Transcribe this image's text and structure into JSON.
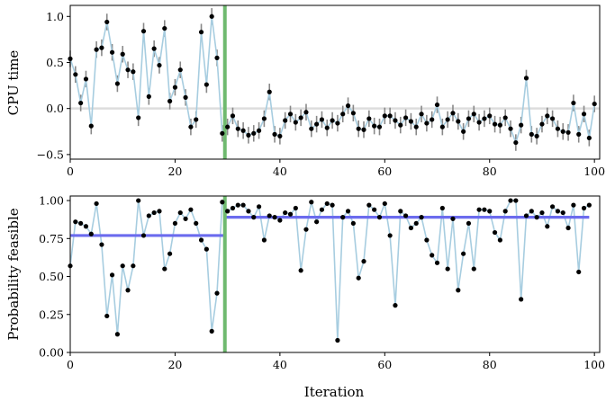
{
  "chart_data": [
    {
      "type": "line",
      "ylabel": "CPU time",
      "xlabel": "",
      "xlim": [
        0,
        101
      ],
      "ylim": [
        -0.55,
        1.12
      ],
      "xticks": [
        "0",
        "20",
        "40",
        "60",
        "80",
        "100"
      ],
      "yticks": [
        "−0.5",
        "0.0",
        "0.5",
        "1.0"
      ],
      "xtick_values": [
        0,
        20,
        40,
        60,
        80,
        100
      ],
      "ytick_values": [
        -0.5,
        0,
        0.5,
        1.0
      ],
      "reference_line_y": 0,
      "switch_x": 29.5,
      "line_color": "#a7cde0",
      "switch_color": "#6fba6f",
      "reference_color": "#dddddd",
      "errorbar_color": "#888888",
      "x": [
        0,
        1,
        2,
        3,
        4,
        5,
        6,
        7,
        8,
        9,
        10,
        11,
        12,
        13,
        14,
        15,
        16,
        17,
        18,
        19,
        20,
        21,
        22,
        23,
        24,
        25,
        26,
        27,
        28,
        29,
        30,
        31,
        32,
        33,
        34,
        35,
        36,
        37,
        38,
        39,
        40,
        41,
        42,
        43,
        44,
        45,
        46,
        47,
        48,
        49,
        50,
        51,
        52,
        53,
        54,
        55,
        56,
        57,
        58,
        59,
        60,
        61,
        62,
        63,
        64,
        65,
        66,
        67,
        68,
        69,
        70,
        71,
        72,
        73,
        74,
        75,
        76,
        77,
        78,
        79,
        80,
        81,
        82,
        83,
        84,
        85,
        86,
        87,
        88,
        89,
        90,
        91,
        92,
        93,
        94,
        95,
        96,
        97,
        98,
        99,
        100
      ],
      "y": [
        0.54,
        0.37,
        0.06,
        0.32,
        -0.19,
        0.64,
        0.66,
        0.94,
        0.61,
        0.27,
        0.59,
        0.42,
        0.4,
        -0.1,
        0.84,
        0.13,
        0.65,
        0.47,
        0.87,
        0.08,
        0.23,
        0.42,
        0.12,
        -0.2,
        -0.12,
        0.83,
        0.26,
        1.0,
        0.55,
        -0.27,
        -0.2,
        -0.08,
        -0.22,
        -0.24,
        -0.29,
        -0.27,
        -0.24,
        -0.11,
        0.18,
        -0.28,
        -0.3,
        -0.13,
        -0.06,
        -0.15,
        -0.1,
        -0.04,
        -0.22,
        -0.17,
        -0.12,
        -0.21,
        -0.13,
        -0.16,
        -0.06,
        0.03,
        -0.05,
        -0.22,
        -0.23,
        -0.11,
        -0.19,
        -0.2,
        -0.08,
        -0.08,
        -0.13,
        -0.18,
        -0.1,
        -0.14,
        -0.2,
        -0.06,
        -0.16,
        -0.12,
        0.04,
        -0.2,
        -0.12,
        -0.05,
        -0.14,
        -0.25,
        -0.11,
        -0.06,
        -0.15,
        -0.11,
        -0.08,
        -0.17,
        -0.18,
        -0.1,
        -0.22,
        -0.37,
        -0.18,
        0.33,
        -0.28,
        -0.3,
        -0.17,
        -0.08,
        -0.11,
        -0.22,
        -0.25,
        -0.26,
        0.06,
        -0.28,
        -0.06,
        -0.32,
        0.05
      ],
      "err": [
        0.09,
        0.09,
        0.09,
        0.09,
        0.09,
        0.09,
        0.09,
        0.09,
        0.09,
        0.09,
        0.09,
        0.09,
        0.09,
        0.09,
        0.09,
        0.09,
        0.09,
        0.09,
        0.09,
        0.09,
        0.09,
        0.09,
        0.09,
        0.09,
        0.09,
        0.09,
        0.09,
        0.09,
        0.09,
        0.09,
        0.09,
        0.09,
        0.09,
        0.09,
        0.09,
        0.09,
        0.09,
        0.09,
        0.09,
        0.09,
        0.09,
        0.09,
        0.09,
        0.09,
        0.09,
        0.09,
        0.09,
        0.09,
        0.09,
        0.09,
        0.09,
        0.09,
        0.09,
        0.09,
        0.09,
        0.09,
        0.09,
        0.09,
        0.09,
        0.09,
        0.09,
        0.09,
        0.09,
        0.09,
        0.09,
        0.09,
        0.09,
        0.09,
        0.09,
        0.09,
        0.09,
        0.09,
        0.09,
        0.09,
        0.09,
        0.09,
        0.09,
        0.09,
        0.09,
        0.09,
        0.09,
        0.09,
        0.09,
        0.09,
        0.09,
        0.09,
        0.09,
        0.09,
        0.09,
        0.09,
        0.09,
        0.09,
        0.09,
        0.09,
        0.09,
        0.09,
        0.09,
        0.09,
        0.09,
        0.09,
        0.09
      ]
    },
    {
      "type": "line",
      "ylabel": "Probability feasible",
      "xlabel": "Iteration",
      "xlim": [
        0,
        101
      ],
      "ylim": [
        0,
        1.03
      ],
      "xticks": [
        "0",
        "20",
        "40",
        "60",
        "80",
        "100"
      ],
      "yticks": [
        "0.00",
        "0.25",
        "0.50",
        "0.75",
        "1.00"
      ],
      "xtick_values": [
        0,
        20,
        40,
        60,
        80,
        100
      ],
      "ytick_values": [
        0,
        0.25,
        0.5,
        0.75,
        1.0
      ],
      "switch_x": 29.5,
      "line_color": "#a7cde0",
      "switch_color": "#6fba6f",
      "mean_color": "#6b6bee",
      "mean_segments": [
        {
          "x0": 0,
          "x1": 29.5,
          "y": 0.77
        },
        {
          "x0": 29.5,
          "x1": 99,
          "y": 0.89
        }
      ],
      "x": [
        0,
        1,
        2,
        3,
        4,
        5,
        6,
        7,
        8,
        9,
        10,
        11,
        12,
        13,
        14,
        15,
        16,
        17,
        18,
        19,
        20,
        21,
        22,
        23,
        24,
        25,
        26,
        27,
        28,
        29,
        30,
        31,
        32,
        33,
        34,
        35,
        36,
        37,
        38,
        39,
        40,
        41,
        42,
        43,
        44,
        45,
        46,
        47,
        48,
        49,
        50,
        51,
        52,
        53,
        54,
        55,
        56,
        57,
        58,
        59,
        60,
        61,
        62,
        63,
        64,
        65,
        66,
        67,
        68,
        69,
        70,
        71,
        72,
        73,
        74,
        75,
        76,
        77,
        78,
        79,
        80,
        81,
        82,
        83,
        84,
        85,
        86,
        87,
        88,
        89,
        90,
        91,
        92,
        93,
        94,
        95,
        96,
        97,
        98,
        99
      ],
      "y": [
        0.57,
        0.86,
        0.85,
        0.83,
        0.78,
        0.98,
        0.71,
        0.24,
        0.51,
        0.12,
        0.57,
        0.41,
        0.57,
        1.0,
        0.77,
        0.9,
        0.92,
        0.93,
        0.55,
        0.65,
        0.85,
        0.92,
        0.88,
        0.94,
        0.85,
        0.74,
        0.68,
        0.14,
        0.39,
        0.99,
        0.93,
        0.95,
        0.97,
        0.97,
        0.93,
        0.89,
        0.96,
        0.74,
        0.9,
        0.89,
        0.87,
        0.92,
        0.91,
        0.95,
        0.54,
        0.81,
        0.99,
        0.86,
        0.94,
        0.98,
        0.97,
        0.08,
        0.89,
        0.93,
        0.85,
        0.49,
        0.6,
        0.97,
        0.94,
        0.89,
        0.98,
        0.77,
        0.31,
        0.93,
        0.9,
        0.82,
        0.85,
        0.89,
        0.74,
        0.64,
        0.59,
        0.95,
        0.55,
        0.88,
        0.41,
        0.65,
        0.85,
        0.55,
        0.94,
        0.94,
        0.93,
        0.79,
        0.74,
        0.93,
        1.0,
        1.0,
        0.35,
        0.9,
        0.93,
        0.89,
        0.92,
        0.83,
        0.96,
        0.93,
        0.92,
        0.82,
        0.97,
        0.53,
        0.95,
        0.97
      ]
    }
  ]
}
